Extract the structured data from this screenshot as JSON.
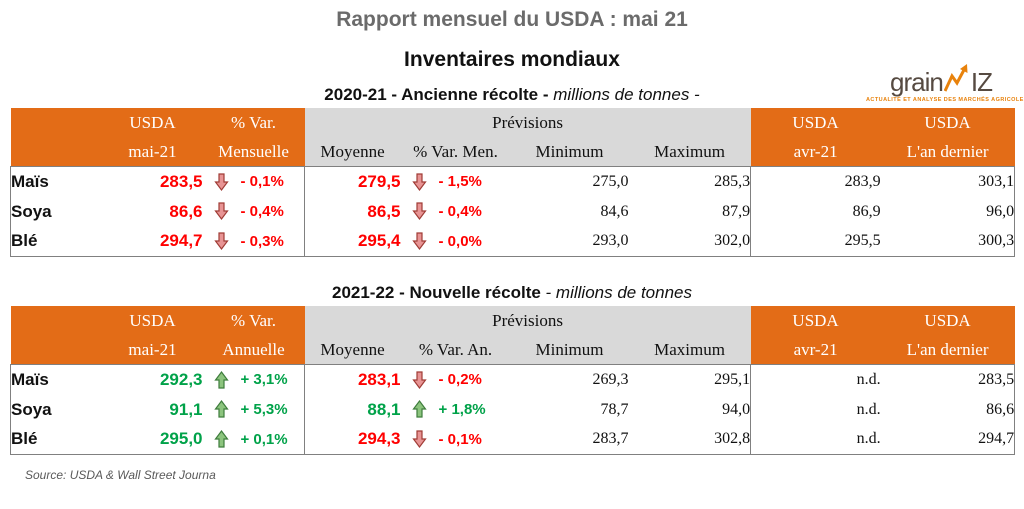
{
  "page": {
    "title": "Rapport mensuel du USDA : mai 21",
    "subtitle": "Inventaires mondiaux",
    "source": "Source: USDA & Wall Street Journa"
  },
  "logo": {
    "text_left": "grain",
    "text_right": "IZ",
    "tagline": "ACTUALITÉ ET ANALYSE DES MARCHÉS AGRICOLES"
  },
  "colors": {
    "orange": "#E36C17",
    "header_gray": "#D9D9D9",
    "negative_red": "#FF0000",
    "positive_green": "#00A249",
    "arrow_down_fill": "#E89494",
    "arrow_up_fill": "#8CC47E"
  },
  "tables": [
    {
      "title_bold": "2020-21 - Ancienne récolte -",
      "title_italic": " millions de tonnes -",
      "header": {
        "usda1": "USDA",
        "usda2": "mai-21",
        "var1": "% Var.",
        "var2": "Mensuelle",
        "previsions": "Prévisions",
        "moyenne": "Moyenne",
        "var_men": "% Var. Men.",
        "minimum": "Minimum",
        "maximum": "Maximum",
        "avr1": "USDA",
        "avr2": "avr-21",
        "dernier1": "USDA",
        "dernier2": "L'an dernier"
      },
      "rows": [
        {
          "label": "Maïs",
          "usda": "283,5",
          "usda_dir": "down",
          "usda_pct": "- 0,1%",
          "moy": "279,5",
          "moy_dir": "down",
          "moy_pct": "- 1,5%",
          "min": "275,0",
          "max": "285,3",
          "avr": "283,9",
          "dernier": "303,1"
        },
        {
          "label": "Soya",
          "usda": "86,6",
          "usda_dir": "down",
          "usda_pct": "- 0,4%",
          "moy": "86,5",
          "moy_dir": "down",
          "moy_pct": "- 0,4%",
          "min": "84,6",
          "max": "87,9",
          "avr": "86,9",
          "dernier": "96,0"
        },
        {
          "label": "Blé",
          "usda": "294,7",
          "usda_dir": "down",
          "usda_pct": "- 0,3%",
          "moy": "295,4",
          "moy_dir": "down",
          "moy_pct": "- 0,0%",
          "min": "293,0",
          "max": "302,0",
          "avr": "295,5",
          "dernier": "300,3"
        }
      ]
    },
    {
      "title_bold": "2021-22 - Nouvelle récolte",
      "title_italic": " - millions de tonnes",
      "header": {
        "usda1": "USDA",
        "usda2": "mai-21",
        "var1": "% Var.",
        "var2": "Annuelle",
        "previsions": "Prévisions",
        "moyenne": "Moyenne",
        "var_men": "% Var. An.",
        "minimum": "Minimum",
        "maximum": "Maximum",
        "avr1": "USDA",
        "avr2": "avr-21",
        "dernier1": "USDA",
        "dernier2": "L'an dernier"
      },
      "rows": [
        {
          "label": "Maïs",
          "usda": "292,3",
          "usda_dir": "up",
          "usda_pct": "+ 3,1%",
          "moy": "283,1",
          "moy_dir": "down",
          "moy_pct": "- 0,2%",
          "min": "269,3",
          "max": "295,1",
          "avr": "n.d.",
          "dernier": "283,5"
        },
        {
          "label": "Soya",
          "usda": "91,1",
          "usda_dir": "up",
          "usda_pct": "+ 5,3%",
          "moy": "88,1",
          "moy_dir": "up",
          "moy_pct": "+ 1,8%",
          "min": "78,7",
          "max": "94,0",
          "avr": "n.d.",
          "dernier": "86,6"
        },
        {
          "label": "Blé",
          "usda": "295,0",
          "usda_dir": "up",
          "usda_pct": "+ 0,1%",
          "moy": "294,3",
          "moy_dir": "down",
          "moy_pct": "- 0,1%",
          "min": "283,7",
          "max": "302,8",
          "avr": "n.d.",
          "dernier": "294,7"
        }
      ]
    }
  ]
}
